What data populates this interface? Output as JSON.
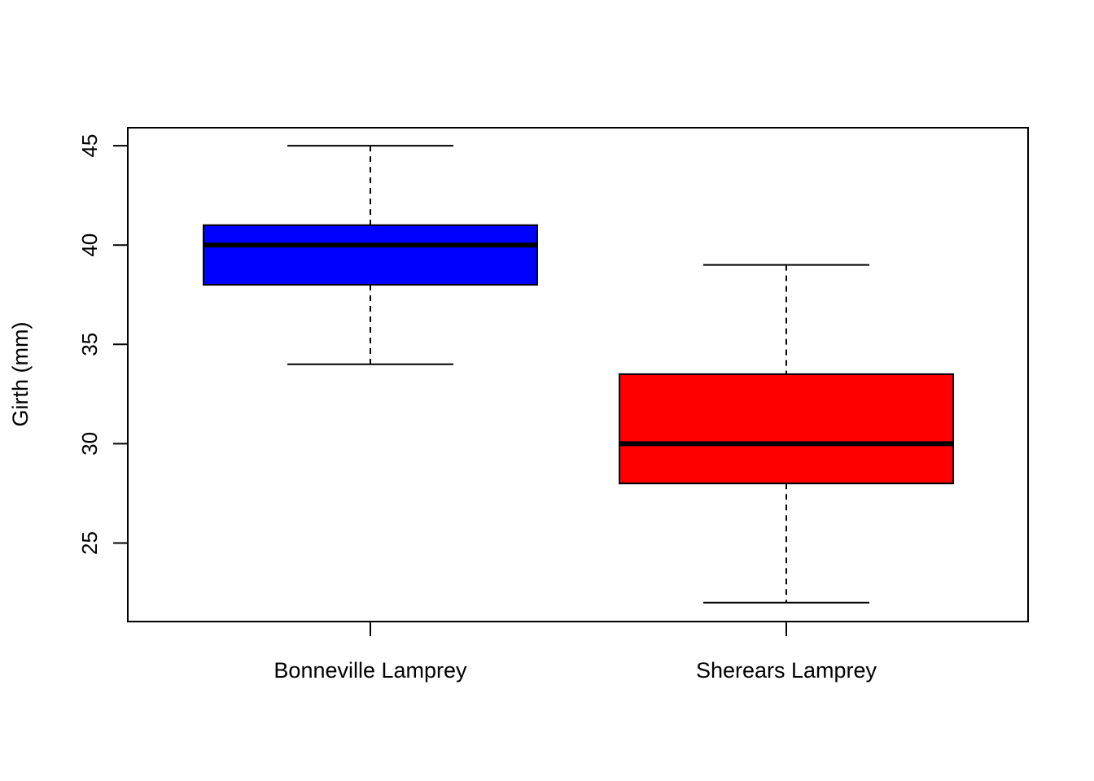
{
  "chart_data": {
    "type": "boxplot",
    "title": "",
    "xlabel": "",
    "ylabel": "Girth (mm)",
    "ylim": [
      21,
      45.9
    ],
    "yticks": [
      25,
      30,
      35,
      40,
      45
    ],
    "grid": false,
    "categories": [
      "Bonneville Lamprey",
      "Sherears Lamprey"
    ],
    "boxes": [
      {
        "category": "Bonneville Lamprey",
        "whisker_low": 34,
        "q1": 38,
        "median": 40,
        "q3": 41,
        "whisker_high": 45,
        "color": "#0000ff"
      },
      {
        "category": "Sherears Lamprey",
        "whisker_low": 22,
        "q1": 28,
        "median": 30,
        "q3": 33.5,
        "whisker_high": 39,
        "color": "#ff0000"
      }
    ]
  }
}
